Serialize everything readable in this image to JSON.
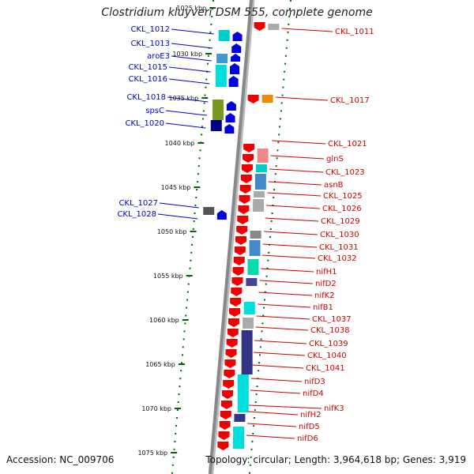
{
  "title": "Clostridium kluyveri DSM 555, complete genome",
  "footer": {
    "accession": "Accession: NC_009706",
    "info": "Topology: circular; Length: 3,964,618 bp; Genes: 3,919"
  },
  "scale_labels": [
    "1025 kbp",
    "1030 kbp",
    "1035 kbp",
    "1040 kbp",
    "1045 kbp",
    "1050 kbp",
    "1055 kbp",
    "1060 kbp",
    "1065 kbp",
    "1070 kbp",
    "1075 kbp"
  ],
  "colors": {
    "forward_gene": "#0000dd",
    "reverse_gene": "#ee0000",
    "label_forward": "#0000cc",
    "label_reverse": "#cc0000",
    "backbone": "#888888",
    "ticks": "#006600"
  },
  "genes_forward": [
    {
      "name": "CKL_1012"
    },
    {
      "name": "CKL_1013"
    },
    {
      "name": "aroE3"
    },
    {
      "name": "CKL_1015"
    },
    {
      "name": "CKL_1016"
    },
    {
      "name": "CKL_1018"
    },
    {
      "name": "spsC"
    },
    {
      "name": "CKL_1020"
    },
    {
      "name": "CKL_1027"
    },
    {
      "name": "CKL_1028"
    }
  ],
  "genes_reverse": [
    {
      "name": "CKL_1011"
    },
    {
      "name": "CKL_1017"
    },
    {
      "name": "CKL_1021"
    },
    {
      "name": "glnS"
    },
    {
      "name": "CKL_1023"
    },
    {
      "name": "asnB"
    },
    {
      "name": "CKL_1025"
    },
    {
      "name": "CKL_1026"
    },
    {
      "name": "CKL_1029"
    },
    {
      "name": "CKL_1030"
    },
    {
      "name": "CKL_1031"
    },
    {
      "name": "CKL_1032"
    },
    {
      "name": "nifH1"
    },
    {
      "name": "nifD2"
    },
    {
      "name": "nifK2"
    },
    {
      "name": "nifB1"
    },
    {
      "name": "CKL_1037"
    },
    {
      "name": "CKL_1038"
    },
    {
      "name": "CKL_1039"
    },
    {
      "name": "CKL_1040"
    },
    {
      "name": "CKL_1041"
    },
    {
      "name": "nifD3"
    },
    {
      "name": "nifD4"
    },
    {
      "name": "nifK3"
    },
    {
      "name": "nifH2"
    },
    {
      "name": "nifD5"
    },
    {
      "name": "nifD6"
    }
  ]
}
